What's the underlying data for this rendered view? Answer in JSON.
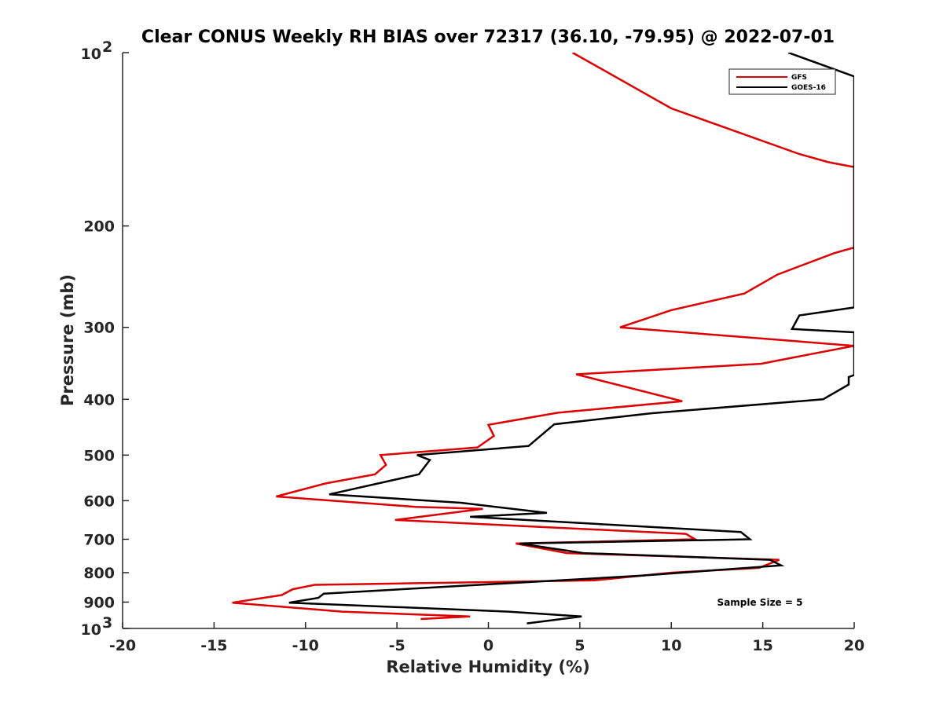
{
  "chart_data": {
    "type": "line",
    "title": "Clear CONUS Weekly RH BIAS over 72317 (36.10, -79.95) @ 2022-07-01",
    "xlabel": "Relative Humidity (%)",
    "ylabel": "Pressure (mb)",
    "xlim": [
      -20,
      20
    ],
    "ylim": [
      100,
      1000
    ],
    "y_scale": "log",
    "y_reversed": true,
    "x_ticks": [
      -20,
      -15,
      -10,
      -5,
      0,
      5,
      10,
      15,
      20
    ],
    "x_tick_labels": [
      "-20",
      "-15",
      "-10",
      "-5",
      "0",
      "5",
      "10",
      "15",
      "20"
    ],
    "y_ticks": [
      100,
      200,
      300,
      400,
      500,
      600,
      700,
      800,
      900,
      1000
    ],
    "y_tick_labels": [
      {
        "base": "10",
        "exp": "2"
      },
      {
        "base": "200",
        "exp": ""
      },
      {
        "base": "300",
        "exp": ""
      },
      {
        "base": "400",
        "exp": ""
      },
      {
        "base": "500",
        "exp": ""
      },
      {
        "base": "600",
        "exp": ""
      },
      {
        "base": "700",
        "exp": ""
      },
      {
        "base": "800",
        "exp": ""
      },
      {
        "base": "900",
        "exp": ""
      },
      {
        "base": "10",
        "exp": "3"
      }
    ],
    "grid": false,
    "legend_position": "top-right",
    "annotation": "Sample Size = 5",
    "series": [
      {
        "name": "GFS",
        "color": "#dd0000",
        "points": [
          [
            4.6,
            100
          ],
          [
            10.0,
            125
          ],
          [
            17.0,
            150
          ],
          [
            18.6,
            155
          ],
          [
            20,
            158
          ],
          [
            20,
            218
          ],
          [
            18.9,
            223
          ],
          [
            15.8,
            243
          ],
          [
            14.0,
            262
          ],
          [
            10.0,
            280
          ],
          [
            7.2,
            300
          ],
          [
            20,
            323
          ],
          [
            14.9,
            347
          ],
          [
            4.8,
            362
          ],
          [
            10.6,
            403
          ],
          [
            3.8,
            422
          ],
          [
            0.0,
            443
          ],
          [
            0.3,
            463
          ],
          [
            -0.6,
            485
          ],
          [
            -5.9,
            500
          ],
          [
            -5.6,
            520
          ],
          [
            -6.2,
            540
          ],
          [
            -8.9,
            560
          ],
          [
            -11.6,
            590
          ],
          [
            -4.0,
            615
          ],
          [
            -0.3,
            620
          ],
          [
            -5.1,
            648
          ],
          [
            10.8,
            685
          ],
          [
            11.3,
            700
          ],
          [
            1.5,
            712
          ],
          [
            4.3,
            740
          ],
          [
            15.9,
            760
          ],
          [
            14.8,
            785
          ],
          [
            10.0,
            800
          ],
          [
            5.8,
            825
          ],
          [
            -9.5,
            840
          ],
          [
            -10.7,
            855
          ],
          [
            -11.3,
            875
          ],
          [
            -14.0,
            902
          ],
          [
            -8.0,
            935
          ],
          [
            -1.0,
            953
          ],
          [
            -3.7,
            963
          ]
        ]
      },
      {
        "name": "GOES-16",
        "color": "#000000",
        "points": [
          [
            16.4,
            100
          ],
          [
            20,
            110
          ],
          [
            20,
            277
          ],
          [
            17.0,
            286
          ],
          [
            16.6,
            302
          ],
          [
            20,
            306
          ],
          [
            20,
            363
          ],
          [
            19.7,
            366
          ],
          [
            19.7,
            377
          ],
          [
            18.3,
            400
          ],
          [
            8.9,
            423
          ],
          [
            3.6,
            442
          ],
          [
            2.2,
            482
          ],
          [
            -3.9,
            500
          ],
          [
            -3.2,
            510
          ],
          [
            -3.8,
            540
          ],
          [
            -8.7,
            585
          ],
          [
            -1.5,
            605
          ],
          [
            3.2,
            630
          ],
          [
            -1.0,
            640
          ],
          [
            13.8,
            680
          ],
          [
            14.3,
            700
          ],
          [
            1.7,
            712
          ],
          [
            5.2,
            740
          ],
          [
            15.4,
            760
          ],
          [
            16.0,
            777
          ],
          [
            8.3,
            810
          ],
          [
            -9.0,
            870
          ],
          [
            -9.3,
            885
          ],
          [
            -10.9,
            902
          ],
          [
            1.1,
            935
          ],
          [
            5.1,
            953
          ],
          [
            2.1,
            980
          ]
        ]
      }
    ]
  }
}
